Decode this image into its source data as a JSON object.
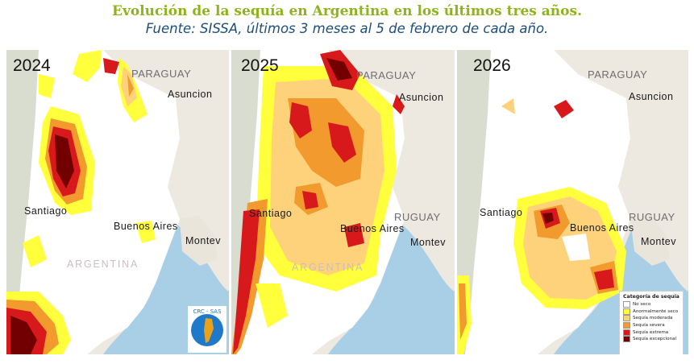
{
  "header": {
    "title": "Evolución de la sequía en Argentina en los últimos tres años.",
    "subtitle": "Fuente: SISSA, últimos 3 meses al 5 de febrero de cada año."
  },
  "panels": [
    {
      "year": "2024",
      "labels": {
        "paraguay": "PARAGUAY",
        "asuncion": "Asuncion",
        "uruguay": "",
        "santiago": "Santiago",
        "buenos_aires": "Buenos Aires",
        "montevideo": "Montev",
        "argentina": "ARGENTINA"
      }
    },
    {
      "year": "2025",
      "labels": {
        "paraguay": "PARAGUAY",
        "asuncion": "Asuncion",
        "uruguay": "RUGUAY",
        "santiago": "Santiago",
        "buenos_aires": "Buenos Aires",
        "montevideo": "Montev",
        "argentina": "ARGENTINA"
      }
    },
    {
      "year": "2026",
      "labels": {
        "paraguay": "PARAGUAY",
        "asuncion": "Asuncion",
        "uruguay": "RUGUAY",
        "santiago": "Santiago",
        "buenos_aires": "Buenos Aires",
        "montevideo": "Montev",
        "argentina": ""
      }
    }
  ],
  "legend": {
    "title": "Categoría de sequía",
    "items": [
      {
        "label": "No seco",
        "color": "#ffffff"
      },
      {
        "label": "Anormalmente seco",
        "color": "#ffff3c"
      },
      {
        "label": "Sequía moderada",
        "color": "#fdd27a"
      },
      {
        "label": "Sequía severa",
        "color": "#f29a2e"
      },
      {
        "label": "Sequía extrema",
        "color": "#d7191c"
      },
      {
        "label": "Sequía excepcional",
        "color": "#730000"
      }
    ]
  },
  "logo_text": "CRC - SAS",
  "colors": {
    "title": "#8fb31b",
    "subtitle": "#1d4e7a",
    "water": "#a9cfe6",
    "land_outside": "#ede9e1",
    "no_dry": "#ffffff"
  }
}
